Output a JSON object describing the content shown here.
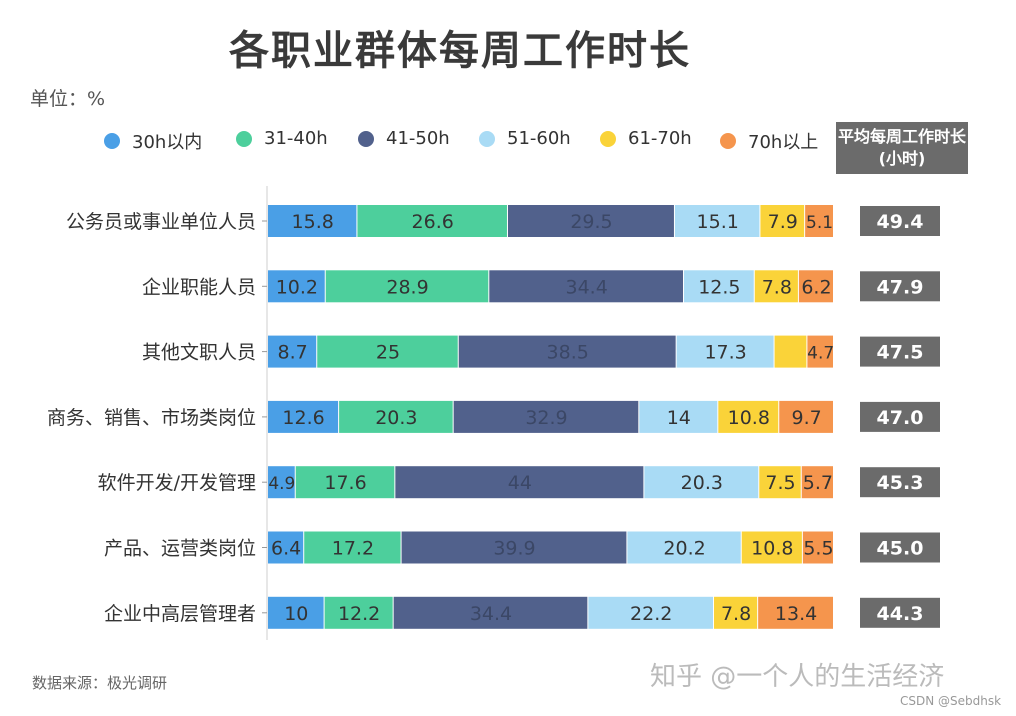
{
  "title": "各职业群体每周工作时长",
  "unit_label": "单位：%",
  "avg_header": "平均每周工作时长(小时)",
  "source": "数据来源：极光调研",
  "watermark": "知乎 @一个人的生活经济",
  "credit": "CSDN @Sebdhsk",
  "chart_data": {
    "type": "bar",
    "orientation": "horizontal",
    "stacked": true,
    "title": "各职业群体每周工作时长",
    "xlabel": "",
    "ylabel": "",
    "unit": "%",
    "legend_position": "top",
    "categories": [
      "公务员或事业单位人员",
      "企业职能人员",
      "其他文职人员",
      "商务、销售、市场类岗位",
      "软件开发/开发管理",
      "产品、运营类岗位",
      "企业中高层管理者"
    ],
    "series": [
      {
        "name": "30h以内",
        "color": "#4a9fe6",
        "values": [
          15.8,
          10.2,
          8.7,
          12.6,
          4.9,
          6.4,
          10
        ]
      },
      {
        "name": "31-40h",
        "color": "#4dcf9c",
        "values": [
          26.6,
          28.9,
          25,
          20.3,
          17.6,
          17.2,
          12.2
        ]
      },
      {
        "name": "41-50h",
        "color": "#51618c",
        "values": [
          29.5,
          34.4,
          38.5,
          32.9,
          44,
          39.9,
          34.4
        ]
      },
      {
        "name": "51-60h",
        "color": "#a9dbf5",
        "values": [
          15.1,
          12.5,
          17.3,
          14,
          20.3,
          20.2,
          22.2
        ]
      },
      {
        "name": "61-70h",
        "color": "#fad339",
        "values": [
          7.9,
          7.8,
          5.8,
          10.8,
          7.5,
          10.8,
          7.8
        ]
      },
      {
        "name": "70h以上",
        "color": "#f5954d",
        "values": [
          5.1,
          6.2,
          4.7,
          9.7,
          5.7,
          5.5,
          13.4
        ]
      }
    ],
    "hidden_labels": [
      [
        2,
        4
      ]
    ],
    "avg_hours": [
      "49.4",
      "47.9",
      "47.5",
      "47.0",
      "45.3",
      "45.0",
      "44.3"
    ]
  }
}
